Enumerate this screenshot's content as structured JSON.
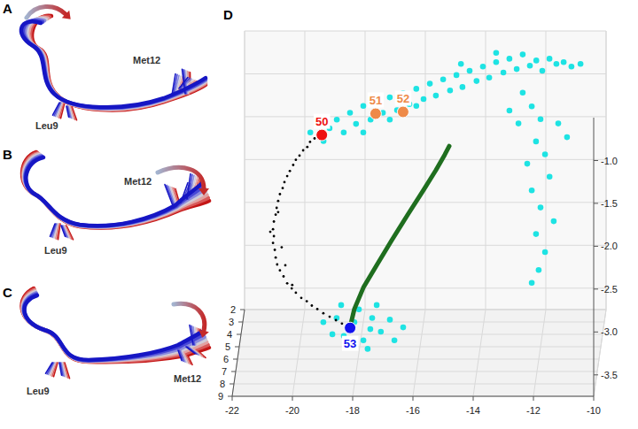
{
  "panels": [
    {
      "letter": "A",
      "labels": [
        "Met12",
        "Leu9"
      ]
    },
    {
      "letter": "B",
      "labels": [
        "Met12",
        "Leu9"
      ]
    },
    {
      "letter": "C",
      "labels": [
        "Met12",
        "Leu9"
      ]
    }
  ],
  "chart_data": {
    "type": "scatter3d",
    "title": "D",
    "xlim": [
      -22,
      -10
    ],
    "xticks": [
      -22,
      -20,
      -18,
      -16,
      -14,
      -12,
      -10
    ],
    "ylim": [
      2,
      9
    ],
    "yticks": [
      2,
      3,
      4,
      5,
      6,
      7,
      8,
      9
    ],
    "zlim": [
      -3.75,
      -0.5
    ],
    "zticks": [
      {
        "value": -1,
        "label": "-1.0"
      },
      -1.5,
      {
        "value": -2,
        "label": "-2.0"
      },
      -2.5,
      {
        "value": -3,
        "label": "-3.0"
      },
      -3.5
    ],
    "grid": true,
    "series": [
      {
        "type": "scatter",
        "color": "#1ee3e3",
        "marker": "circle",
        "x": [
          -19.76,
          -19.53,
          -19.32,
          -19.12,
          -18.88,
          -18.65,
          -18.44,
          -18.24,
          -18.0,
          -17.76,
          -17.56,
          -17.35,
          -17.12,
          -16.88,
          -16.68,
          -16.47,
          -16.24,
          -16.0,
          -15.79,
          -15.59,
          -15.35,
          -15.12,
          -14.91,
          -14.71,
          -14.47,
          -14.24,
          -14.03,
          -13.82,
          -13.59,
          -13.35,
          -13.15,
          -12.91,
          -12.71,
          -12.47,
          -12.26,
          -12.06,
          -11.82,
          -11.59,
          -11.35,
          -11.09,
          -10.79,
          -13.59,
          -14.76,
          -16.24,
          -17.12,
          -18.0,
          -12.65,
          -12.35,
          -12.06,
          -12.79,
          -12.21,
          -11.91,
          -12.5,
          -11.76,
          -12.35,
          -12.06,
          -11.62,
          -12.21,
          -11.91,
          -12.12,
          -12.35,
          -11.47,
          -11.18,
          -13.09,
          -18.71,
          -18.47,
          -18.12,
          -17.82,
          -17.53,
          -17.24,
          -17.68,
          -18.26,
          -18.85,
          -16.94,
          -17.97,
          -17.38,
          -16.79,
          -18.56,
          -19.15,
          -16.5,
          -17.59
        ],
        "y": [
          3,
          3,
          3,
          3,
          3,
          3,
          3,
          3,
          3,
          3,
          3,
          3,
          3,
          3,
          3,
          3,
          3,
          3,
          3,
          3,
          3,
          3,
          3,
          3,
          3,
          3,
          3,
          3,
          3,
          3,
          3,
          3,
          3,
          3,
          3,
          3,
          3,
          3,
          3,
          3,
          3,
          3,
          3,
          3,
          3,
          3,
          4,
          4,
          4,
          4,
          4,
          4,
          4,
          4,
          4,
          4,
          4,
          4,
          4,
          4,
          4,
          4,
          4,
          4,
          6,
          6,
          6,
          6,
          6,
          6,
          6,
          6,
          6,
          6,
          6,
          6,
          6,
          6,
          6,
          6,
          6
        ],
        "z": [
          -1.54,
          -1.44,
          -1.64,
          -1.49,
          -1.39,
          -1.54,
          -1.31,
          -1.44,
          -1.23,
          -1.39,
          -1.18,
          -1.31,
          -1.13,
          -1.28,
          -1.08,
          -1.21,
          -1.03,
          -1.15,
          -0.97,
          -1.11,
          -0.92,
          -1.05,
          -0.87,
          -1.01,
          -0.82,
          -0.94,
          -0.77,
          -0.9,
          -0.72,
          -0.84,
          -0.68,
          -0.8,
          -0.63,
          -0.76,
          -0.7,
          -0.82,
          -0.68,
          -0.74,
          -0.72,
          -0.77,
          -0.74,
          -0.61,
          -0.74,
          -1.23,
          -1.39,
          -1.54,
          -0.93,
          -1.09,
          -1.24,
          -1.29,
          -1.5,
          -1.65,
          -1.76,
          -1.91,
          -2.07,
          -2.27,
          -2.43,
          -2.58,
          -2.79,
          -3.0,
          -3.15,
          -1.29,
          -1.45,
          -1.14,
          -3.27,
          -3.48,
          -3.32,
          -3.53,
          -3.27,
          -3.43,
          -3.63,
          -3.6,
          -3.46,
          -3.29,
          -3.17,
          -3.12,
          -3.53,
          -3.12,
          -3.32,
          -3.38,
          -3.4
        ]
      },
      {
        "type": "scatter",
        "color": "#000000",
        "marker": "dot",
        "x": [
          -19.5,
          -19.65,
          -19.74,
          -19.88,
          -20.0,
          -20.12,
          -20.21,
          -20.32,
          -20.41,
          -20.5,
          -20.56,
          -20.65,
          -20.71,
          -20.76,
          -20.79,
          -20.85,
          -20.88,
          -20.85,
          -20.88,
          -20.82,
          -20.79,
          -20.74,
          -20.65,
          -20.53,
          -20.41,
          -20.26,
          -20.12,
          -19.94,
          -19.76,
          -19.59,
          -19.41,
          -19.21,
          -19.0,
          -18.79,
          -18.59,
          -20.59,
          -20.47,
          -20.97,
          -20.71,
          -20.24
        ],
        "y": [
          5,
          5,
          5,
          5,
          5,
          5,
          5,
          5,
          5,
          5,
          5,
          5,
          5,
          5,
          5,
          5,
          5,
          5,
          5,
          5,
          5,
          5,
          5,
          5,
          5,
          5,
          5,
          5,
          5,
          5,
          5,
          5,
          5,
          5,
          5,
          5,
          5,
          5,
          5,
          5
        ],
        "z": [
          -1.32,
          -1.36,
          -1.42,
          -1.46,
          -1.52,
          -1.57,
          -1.63,
          -1.7,
          -1.76,
          -1.83,
          -1.9,
          -1.97,
          -2.05,
          -2.13,
          -2.21,
          -2.29,
          -2.38,
          -2.46,
          -2.54,
          -2.62,
          -2.71,
          -2.79,
          -2.86,
          -2.93,
          -3.01,
          -3.07,
          -3.12,
          -3.18,
          -3.22,
          -3.27,
          -3.31,
          -3.36,
          -3.4,
          -3.44,
          -3.48,
          -2.59,
          -2.8,
          -2.41,
          -2.18,
          -3.03
        ]
      },
      {
        "type": "line",
        "color": "#1f6e1f",
        "line_style": "solid",
        "x": [
          -18.32,
          -18.18,
          -17.88,
          -17.44,
          -16.94,
          -16.41,
          -15.88,
          -15.47,
          -15.18,
          -15.03
        ],
        "y": [
          5,
          5,
          5,
          5,
          5,
          5,
          5,
          5,
          5,
          5
        ],
        "z": [
          -3.52,
          -3.31,
          -3.06,
          -2.8,
          -2.51,
          -2.21,
          -1.92,
          -1.69,
          -1.51,
          -1.41
        ]
      },
      {
        "type": "scatter",
        "marker": "circle",
        "colors": [
          "#ee1111",
          "#ee8a48",
          "#ee8a48",
          "#1111ee"
        ],
        "labels": [
          "50",
          "51",
          "52",
          "53"
        ],
        "x": [
          -19.26,
          -17.59,
          -16.68,
          -18.32
        ],
        "y": [
          5,
          3,
          3,
          5
        ],
        "z": [
          -1.28,
          -1.32,
          -1.3,
          -3.53
        ]
      }
    ]
  }
}
